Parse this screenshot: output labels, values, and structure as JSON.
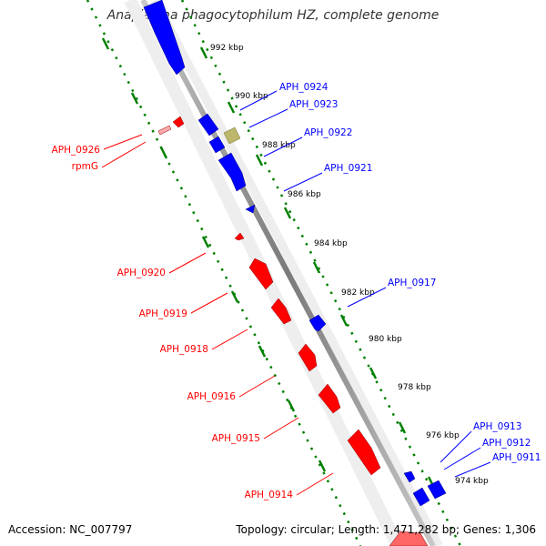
{
  "title": "Anaplasma phagocytophilum HZ, complete genome",
  "footer": {
    "accession": "Accession: NC_007797",
    "summary": "Topology: circular; Length: 1,471,282 bp; Genes: 1,306"
  },
  "colors": {
    "forward_strand": "#0000ff",
    "reverse_strand": "#ff0000",
    "other_feature": "#bdb76b",
    "backbone": "#808080",
    "ruler_dots": "#008000"
  },
  "kbp_ticks": [
    "992 kbp",
    "990 kbp",
    "988 kbp",
    "986 kbp",
    "984 kbp",
    "982 kbp",
    "980 kbp",
    "978 kbp",
    "976 kbp",
    "974 kbp"
  ],
  "forward_genes": [
    "APH_0924",
    "APH_0923",
    "APH_0922",
    "APH_0921",
    "APH_0917",
    "APH_0913",
    "APH_0912",
    "APH_0911"
  ],
  "reverse_genes": [
    "APH_0926",
    "rpmG",
    "APH_0920",
    "APH_0919",
    "APH_0918",
    "APH_0916",
    "APH_0915",
    "APH_0914"
  ]
}
